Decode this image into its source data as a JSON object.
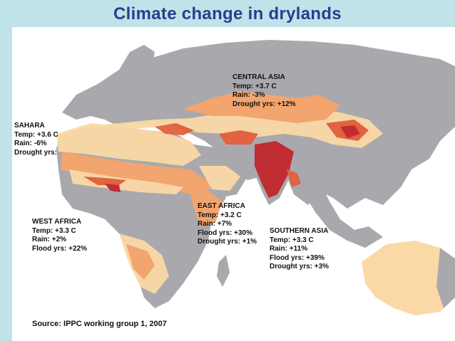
{
  "title": "Climate change in drylands",
  "regions": {
    "central_asia": {
      "name": "CENTRAL ASIA",
      "lines": [
        "Temp: +3.7 C",
        "Rain: -3%",
        "Drought yrs: +12%"
      ]
    },
    "sahara": {
      "name": "SAHARA",
      "lines": [
        "Temp: +3.6 C",
        "Rain: -6%",
        "Drought yrs:"
      ]
    },
    "west_africa": {
      "name": "WEST AFRICA",
      "lines": [
        "Temp: +3.3 C",
        "Rain: +2%",
        "Flood yrs: +22%"
      ]
    },
    "east_africa": {
      "name": "EAST AFRICA",
      "lines": [
        "Temp: +3.2 C",
        "Rain: +7%",
        "Flood yrs: +30%",
        "Drought yrs: +1%"
      ]
    },
    "southern_asia": {
      "name": "SOUTHERN ASIA",
      "lines": [
        "Temp: +3.3 C",
        "Rain: +11%",
        "Flood yrs: +39%",
        "Drought yrs: +3%"
      ]
    }
  },
  "source": "Source: IPPC working group 1, 2007",
  "colors": {
    "background": "#bfe3e8",
    "title": "#2b3c8f",
    "land": "#a9a9ad",
    "dryland_light": "#fbd9a6",
    "dryland_mid": "#f6a56b",
    "dryland_high": "#e4603a",
    "dryland_extreme": "#c1272d"
  }
}
